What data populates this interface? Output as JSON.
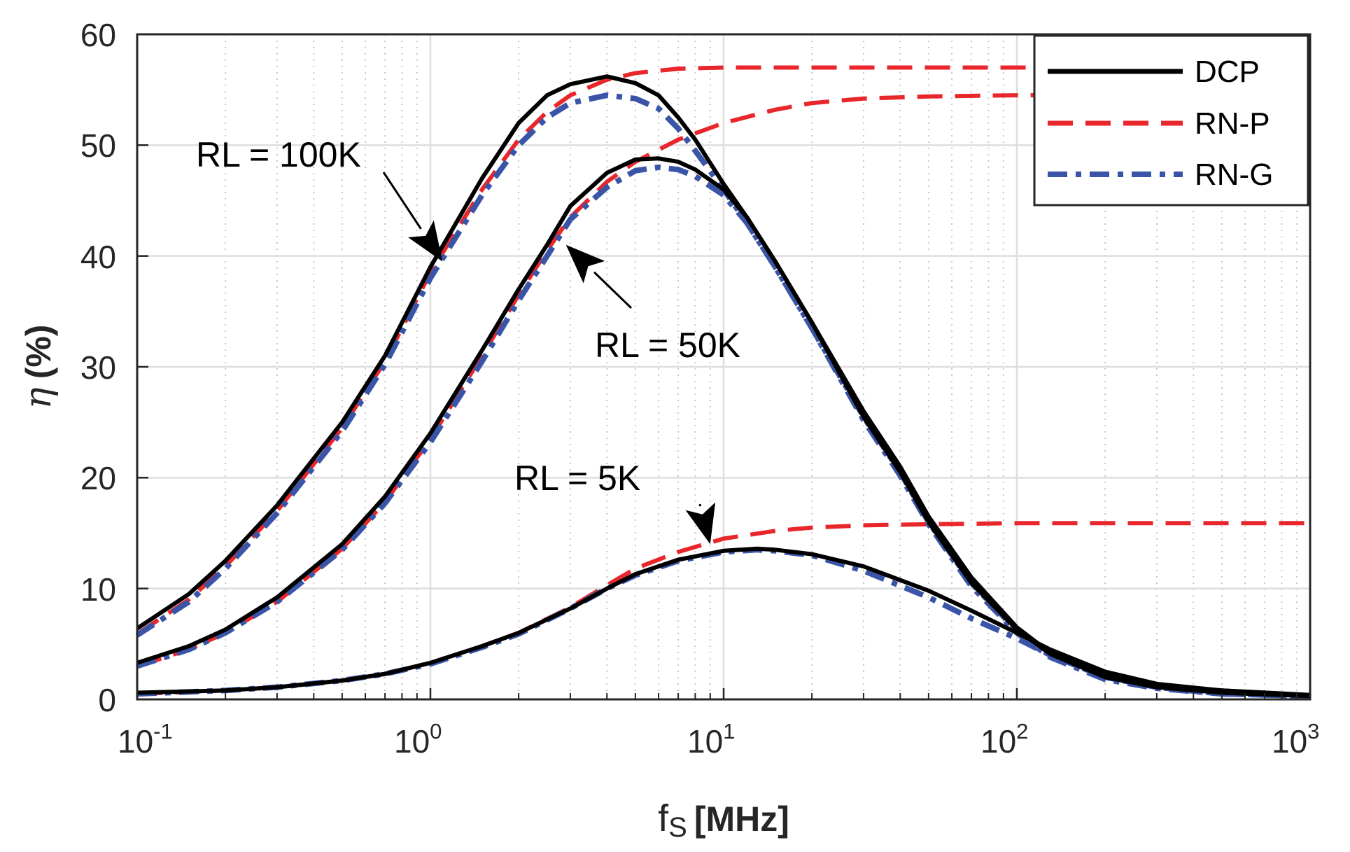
{
  "chart_data": {
    "type": "line",
    "title": "",
    "xscale": "log",
    "xlim": [
      0.1,
      1000
    ],
    "ylim": [
      0,
      60
    ],
    "xlabel": {
      "main": "f",
      "sub": "S",
      "unit": "[MHz]"
    },
    "ylabel": {
      "symbol": "η",
      "unit": "(%)"
    },
    "grid": true,
    "minor_grid": true,
    "legend_position": "top-right",
    "x_ticks": [
      {
        "base": "10",
        "exp": "-1",
        "value": 0.1
      },
      {
        "base": "10",
        "exp": "0",
        "value": 1
      },
      {
        "base": "10",
        "exp": "1",
        "value": 10
      },
      {
        "base": "10",
        "exp": "2",
        "value": 100
      },
      {
        "base": "10",
        "exp": "3",
        "value": 1000
      }
    ],
    "y_ticks": [
      "0",
      "10",
      "20",
      "30",
      "40",
      "50",
      "60"
    ],
    "legend": [
      {
        "label": "DCP",
        "color": "#000000",
        "dash": "solid"
      },
      {
        "label": "RN-P",
        "color": "#e8262b",
        "dash": "dashed"
      },
      {
        "label": "RN-G",
        "color": "#3a55a7",
        "dash": "dashdot"
      }
    ],
    "annotations": [
      {
        "text": "RL = 100K",
        "points_to": [
          1.1,
          39.5
        ]
      },
      {
        "text": "RL = 50K",
        "points_to": [
          2.9,
          41
        ]
      },
      {
        "text": "RL = 5K",
        "points_to": [
          9,
          14
        ]
      }
    ],
    "series": [
      {
        "name": "DCP",
        "load": "RL = 100K",
        "color": "#000000",
        "dash": "solid",
        "x": [
          0.1,
          0.15,
          0.2,
          0.3,
          0.5,
          0.7,
          1,
          1.5,
          2,
          2.5,
          3,
          4,
          5,
          6,
          7,
          8,
          10,
          12,
          15,
          20,
          30,
          40,
          50,
          70,
          100,
          130,
          200,
          300,
          500,
          1000
        ],
        "y": [
          6.4,
          9.5,
          12.5,
          17.5,
          25,
          31,
          39,
          47,
          52,
          54.5,
          55.5,
          56.2,
          55.6,
          54.5,
          52.5,
          50.5,
          46.5,
          43.5,
          39.5,
          34,
          26,
          21,
          16.5,
          11,
          6.5,
          4.2,
          2.2,
          1.3,
          0.8,
          0.4
        ]
      },
      {
        "name": "RN-P",
        "load": "RL = 100K",
        "color": "#e8262b",
        "dash": "dashed",
        "x": [
          0.1,
          0.15,
          0.2,
          0.3,
          0.5,
          0.7,
          1,
          1.5,
          2,
          2.5,
          3,
          4,
          5,
          7,
          10,
          20,
          50,
          100,
          300,
          1000
        ],
        "y": [
          5.9,
          9,
          12,
          17,
          24.5,
          30.5,
          38.5,
          46,
          50.5,
          53,
          54.5,
          55.9,
          56.5,
          56.9,
          57,
          57,
          57,
          57,
          57,
          57
        ]
      },
      {
        "name": "RN-G",
        "load": "RL = 100K",
        "color": "#3a55a7",
        "dash": "dashdot",
        "x": [
          0.1,
          0.15,
          0.2,
          0.3,
          0.5,
          0.7,
          1,
          1.5,
          2,
          2.5,
          3,
          4,
          5,
          6,
          7,
          8,
          10,
          12,
          15,
          20,
          30,
          40,
          50,
          70,
          100,
          130,
          200,
          300,
          500,
          1000
        ],
        "y": [
          5.8,
          8.8,
          11.8,
          16.8,
          24.2,
          30.2,
          38,
          45.5,
          50,
          52.5,
          53.8,
          54.5,
          54.2,
          53.3,
          51.5,
          49.5,
          46,
          43,
          39,
          33.5,
          25.5,
          20.5,
          16,
          10.5,
          6.2,
          4,
          2,
          1.1,
          0.6,
          0.3
        ]
      },
      {
        "name": "DCP",
        "load": "RL = 50K",
        "color": "#000000",
        "dash": "solid",
        "x": [
          0.1,
          0.15,
          0.2,
          0.3,
          0.5,
          0.7,
          1,
          1.5,
          2,
          2.5,
          3,
          4,
          5,
          6,
          7,
          8,
          10,
          12,
          15,
          20,
          30,
          40,
          50,
          70,
          100,
          130,
          200,
          300,
          500,
          1000
        ],
        "y": [
          3.3,
          4.8,
          6.3,
          9.2,
          14,
          18.3,
          24,
          31.5,
          37,
          41,
          44.5,
          47.5,
          48.7,
          48.8,
          48.5,
          47.8,
          46,
          43.5,
          39.5,
          34,
          25.5,
          20.5,
          16,
          10.5,
          6.3,
          4.1,
          2,
          1.1,
          0.6,
          0.3
        ]
      },
      {
        "name": "RN-P",
        "load": "RL = 50K",
        "color": "#e8262b",
        "dash": "dashed",
        "x": [
          0.1,
          0.15,
          0.2,
          0.3,
          0.5,
          0.7,
          1,
          1.5,
          2,
          2.5,
          3,
          4,
          5,
          7,
          10,
          15,
          20,
          30,
          50,
          100,
          300,
          1000
        ],
        "y": [
          3,
          4.5,
          6,
          8.8,
          13.6,
          17.8,
          23.5,
          31,
          36.5,
          40.5,
          43.5,
          46.7,
          48.5,
          50.5,
          52,
          53.2,
          53.8,
          54.2,
          54.4,
          54.5,
          54.5,
          54.5
        ]
      },
      {
        "name": "RN-G",
        "load": "RL = 50K",
        "color": "#3a55a7",
        "dash": "dashdot",
        "x": [
          0.1,
          0.15,
          0.2,
          0.3,
          0.5,
          0.7,
          1,
          1.5,
          2,
          2.5,
          3,
          4,
          5,
          6,
          7,
          8,
          10,
          12,
          15,
          20,
          30,
          40,
          50,
          70,
          100,
          130,
          200,
          300,
          500,
          1000
        ],
        "y": [
          3,
          4.5,
          6,
          8.8,
          13.5,
          17.7,
          23.2,
          30.5,
          36,
          40,
          43.3,
          46.2,
          47.7,
          48,
          47.8,
          47.2,
          45.5,
          43,
          39,
          33.5,
          25.2,
          20.2,
          15.8,
          10.2,
          6,
          3.8,
          1.8,
          1,
          0.5,
          0.3
        ]
      },
      {
        "name": "DCP",
        "load": "RL = 5K",
        "color": "#000000",
        "dash": "solid",
        "x": [
          0.1,
          0.2,
          0.3,
          0.5,
          0.7,
          1,
          1.5,
          2,
          3,
          4,
          5,
          7,
          10,
          13,
          15,
          20,
          30,
          50,
          70,
          100,
          130,
          200,
          300,
          500,
          1000
        ],
        "y": [
          0.6,
          0.8,
          1.1,
          1.7,
          2.3,
          3.3,
          4.8,
          6,
          8.2,
          10,
          11.3,
          12.6,
          13.4,
          13.6,
          13.5,
          13.1,
          12,
          9.8,
          8,
          6,
          4.5,
          2.5,
          1.4,
          0.8,
          0.4
        ]
      },
      {
        "name": "RN-P",
        "load": "RL = 5K",
        "color": "#e8262b",
        "dash": "dashed",
        "x": [
          0.1,
          0.2,
          0.3,
          0.5,
          0.7,
          1,
          1.5,
          2,
          3,
          4,
          5,
          7,
          10,
          15,
          20,
          30,
          50,
          100,
          300,
          1000
        ],
        "y": [
          0.5,
          0.8,
          1.1,
          1.7,
          2.3,
          3.3,
          4.8,
          6,
          8.3,
          10.3,
          11.8,
          13.3,
          14.5,
          15.2,
          15.5,
          15.7,
          15.8,
          15.9,
          15.9,
          15.9
        ]
      },
      {
        "name": "RN-G",
        "load": "RL = 5K",
        "color": "#3a55a7",
        "dash": "dashdot",
        "x": [
          0.1,
          0.2,
          0.3,
          0.5,
          0.7,
          1,
          1.5,
          2,
          3,
          4,
          5,
          7,
          10,
          13,
          15,
          20,
          30,
          50,
          70,
          100,
          130,
          200,
          300,
          500,
          1000
        ],
        "y": [
          0.5,
          0.8,
          1.1,
          1.7,
          2.3,
          3.2,
          4.7,
          5.9,
          8.2,
          10,
          11.2,
          12.5,
          13.3,
          13.5,
          13.4,
          13,
          11.6,
          9.2,
          7.3,
          5.5,
          4,
          2.1,
          1.1,
          0.5,
          0.3
        ]
      }
    ]
  }
}
